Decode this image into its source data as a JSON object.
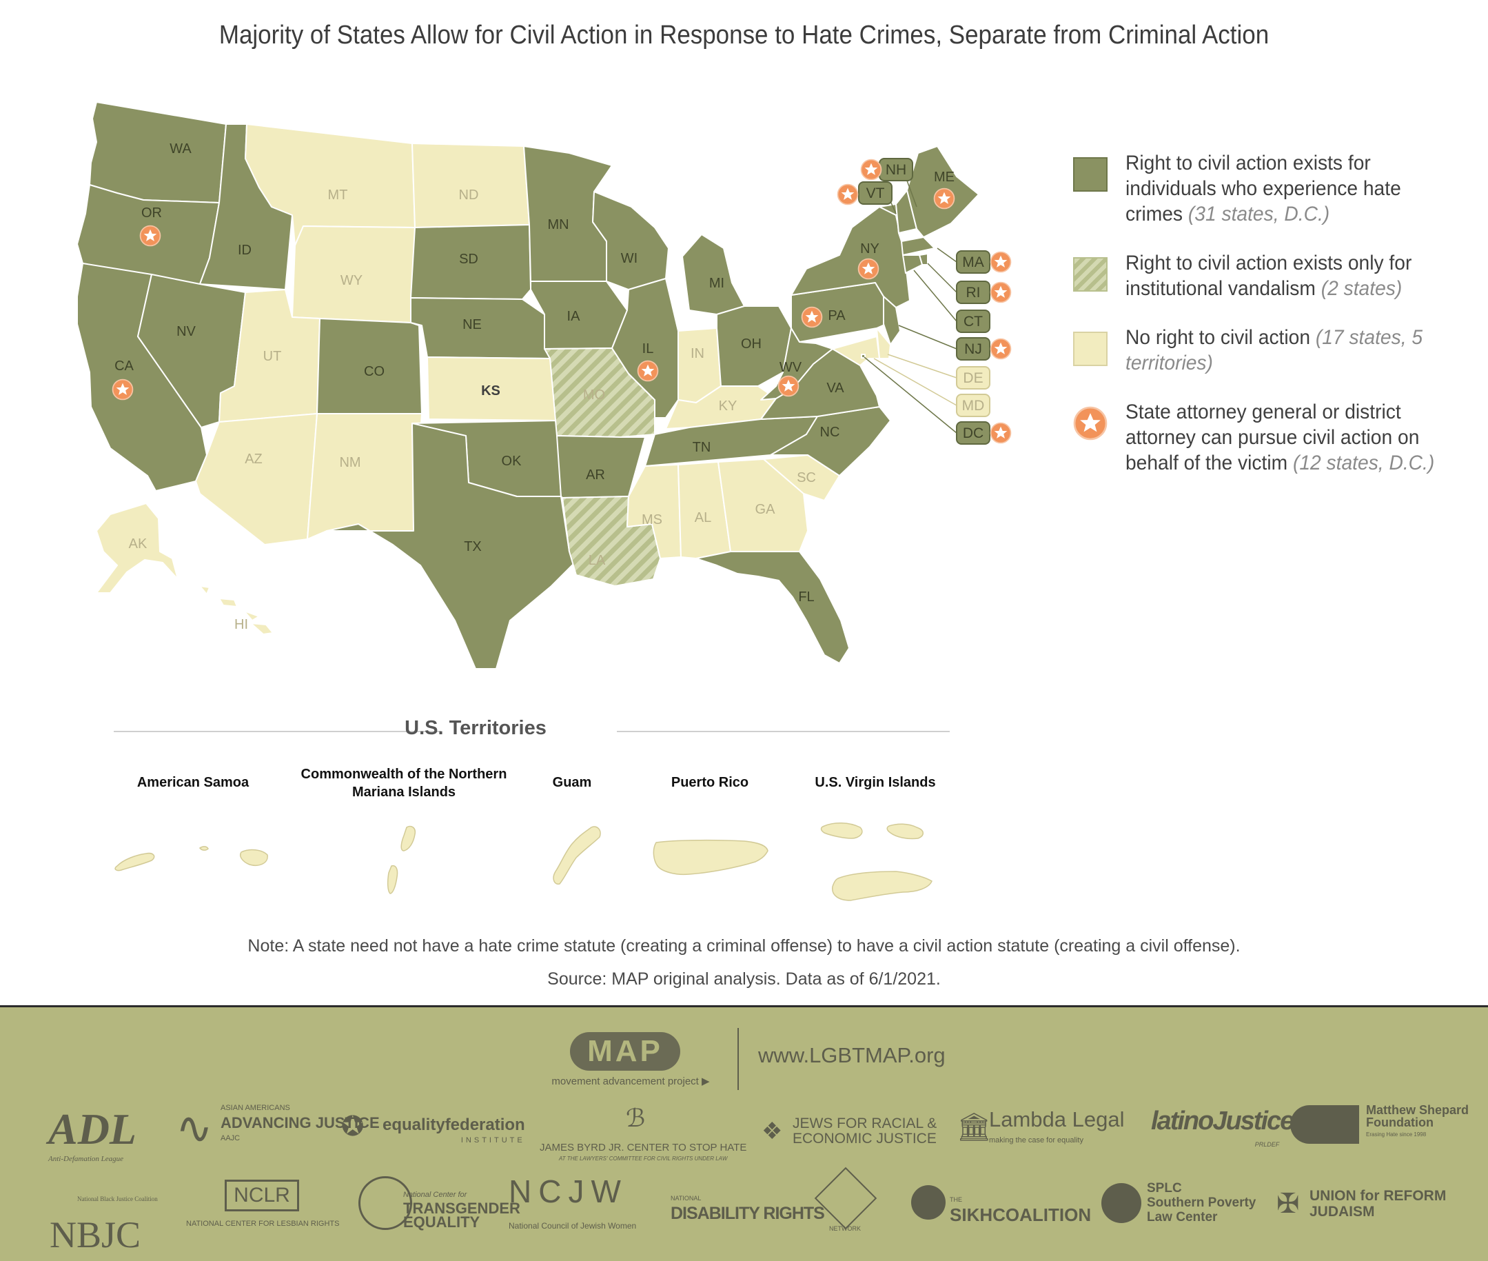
{
  "title": "Majority of States Allow for Civil Action in Response to Hate Crimes, Separate from Criminal Action",
  "colors": {
    "civil": "#8a9262",
    "vandalism": "#b7bf8c",
    "none": "#f2ecbf",
    "star": "#f2935a",
    "footer": "#b4b77f"
  },
  "legend": [
    {
      "key": "civil",
      "text": "Right to civil action exists for individuals who experience hate crimes",
      "note": "(31 states, D.C.)"
    },
    {
      "key": "vandalism",
      "text": "Right to civil action exists only for institutional vandalism",
      "note": "(2 states)"
    },
    {
      "key": "none",
      "text": "No right to civil action",
      "note": "(17 states, 5 territories)"
    },
    {
      "key": "star",
      "text": "State attorney general or district attorney can pursue civil action on behalf of the victim",
      "note": "(12 states, D.C.)"
    }
  ],
  "states": [
    {
      "abbr": "WA",
      "status": "civil",
      "star": false
    },
    {
      "abbr": "OR",
      "status": "civil",
      "star": true
    },
    {
      "abbr": "CA",
      "status": "civil",
      "star": true
    },
    {
      "abbr": "ID",
      "status": "civil",
      "star": false
    },
    {
      "abbr": "NV",
      "status": "civil",
      "star": false
    },
    {
      "abbr": "MT",
      "status": "none",
      "star": false
    },
    {
      "abbr": "WY",
      "status": "none",
      "star": false
    },
    {
      "abbr": "UT",
      "status": "none",
      "star": false
    },
    {
      "abbr": "AZ",
      "status": "none",
      "star": false
    },
    {
      "abbr": "CO",
      "status": "civil",
      "star": false
    },
    {
      "abbr": "NM",
      "status": "none",
      "star": false
    },
    {
      "abbr": "ND",
      "status": "none",
      "star": false
    },
    {
      "abbr": "SD",
      "status": "civil",
      "star": false
    },
    {
      "abbr": "NE",
      "status": "civil",
      "star": false
    },
    {
      "abbr": "KS",
      "status": "none",
      "star": false
    },
    {
      "abbr": "OK",
      "status": "civil",
      "star": false
    },
    {
      "abbr": "TX",
      "status": "civil",
      "star": false
    },
    {
      "abbr": "MN",
      "status": "civil",
      "star": false
    },
    {
      "abbr": "IA",
      "status": "civil",
      "star": false
    },
    {
      "abbr": "MO",
      "status": "vandalism",
      "star": false
    },
    {
      "abbr": "AR",
      "status": "civil",
      "star": false
    },
    {
      "abbr": "LA",
      "status": "vandalism",
      "star": false
    },
    {
      "abbr": "WI",
      "status": "civil",
      "star": false
    },
    {
      "abbr": "IL",
      "status": "civil",
      "star": true
    },
    {
      "abbr": "MI",
      "status": "civil",
      "star": false
    },
    {
      "abbr": "IN",
      "status": "none",
      "star": false
    },
    {
      "abbr": "OH",
      "status": "civil",
      "star": false
    },
    {
      "abbr": "KY",
      "status": "none",
      "star": false
    },
    {
      "abbr": "TN",
      "status": "civil",
      "star": false
    },
    {
      "abbr": "MS",
      "status": "none",
      "star": false
    },
    {
      "abbr": "AL",
      "status": "none",
      "star": false
    },
    {
      "abbr": "GA",
      "status": "none",
      "star": false
    },
    {
      "abbr": "FL",
      "status": "civil",
      "star": false
    },
    {
      "abbr": "SC",
      "status": "none",
      "star": false
    },
    {
      "abbr": "NC",
      "status": "civil",
      "star": false
    },
    {
      "abbr": "VA",
      "status": "civil",
      "star": false
    },
    {
      "abbr": "WV",
      "status": "civil",
      "star": true
    },
    {
      "abbr": "PA",
      "status": "civil",
      "star": true
    },
    {
      "abbr": "NY",
      "status": "civil",
      "star": true
    },
    {
      "abbr": "VT",
      "status": "civil",
      "star": true
    },
    {
      "abbr": "NH",
      "status": "civil",
      "star": true
    },
    {
      "abbr": "ME",
      "status": "civil",
      "star": true
    },
    {
      "abbr": "MA",
      "status": "civil",
      "star": true
    },
    {
      "abbr": "RI",
      "status": "civil",
      "star": true
    },
    {
      "abbr": "CT",
      "status": "civil",
      "star": false
    },
    {
      "abbr": "NJ",
      "status": "civil",
      "star": true
    },
    {
      "abbr": "DE",
      "status": "none",
      "star": false
    },
    {
      "abbr": "MD",
      "status": "none",
      "star": false
    },
    {
      "abbr": "DC",
      "status": "civil",
      "star": true
    },
    {
      "abbr": "AK",
      "status": "none",
      "star": false
    },
    {
      "abbr": "HI",
      "status": "none",
      "star": false
    }
  ],
  "territories": {
    "heading": "U.S. Territories",
    "items": [
      "American Samoa",
      "Commonwealth of the Northern Mariana Islands",
      "Guam",
      "Puerto Rico",
      "U.S. Virgin Islands"
    ]
  },
  "note": "Note: A state need not have a hate crime statute (creating a criminal offense) to have a civil action statute (creating a civil offense).",
  "source": "Source: MAP original analysis. Data as of 6/1/2021.",
  "footer": {
    "logo": "MAP",
    "logo_sub": "movement advancement project",
    "url": "www.LGBTMAP.org",
    "orgs": [
      {
        "name": "ADL",
        "sub": "Anti-Defamation League"
      },
      {
        "name": "ADVANCING JUSTICE",
        "sub": "ASIAN AMERICANS",
        "sub2": "AAJC"
      },
      {
        "name": "equalityfederation",
        "sub": "INSTITUTE"
      },
      {
        "name": "JAMES BYRD JR. CENTER TO STOP HATE",
        "sub": "AT THE LAWYERS' COMMITTEE FOR CIVIL RIGHTS UNDER LAW"
      },
      {
        "name": "JEWS FOR RACIAL &",
        "sub": "ECONOMIC JUSTICE"
      },
      {
        "name": "Lambda Legal",
        "sub": "making the case for equality"
      },
      {
        "name": "latinoJustice",
        "sub": "PRLDEF"
      },
      {
        "name": "Matthew Shepard Foundation",
        "sub": "Erasing Hate since 1998"
      },
      {
        "name": "NBJC",
        "sub": "National Black Justice Coalition"
      },
      {
        "name": "NCLR",
        "sub": "NATIONAL CENTER FOR LESBIAN RIGHTS"
      },
      {
        "name": "TRANSGENDER EQUALITY",
        "sub": "National Center for"
      },
      {
        "name": "NCJW",
        "sub": "National Council of Jewish Women"
      },
      {
        "name": "DISABILITY RIGHTS",
        "sub": "NATIONAL",
        "sub2": "NETWORK"
      },
      {
        "name": "SIKHCOALITION",
        "sub": "THE"
      },
      {
        "name": "SPLC",
        "sub": "Southern Poverty Law Center"
      },
      {
        "name": "UNION for REFORM JUDAISM",
        "sub": ""
      }
    ]
  }
}
